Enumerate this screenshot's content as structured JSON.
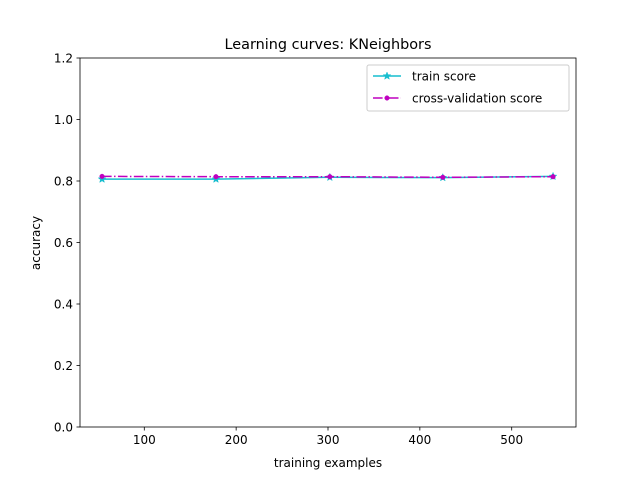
{
  "chart_data": {
    "type": "line",
    "title": "Learning curves: KNeighbors",
    "xlabel": "training examples",
    "ylabel": "accuracy",
    "xlim": [
      30,
      570
    ],
    "ylim": [
      0.0,
      1.2
    ],
    "xticks": [
      100,
      200,
      300,
      400,
      500
    ],
    "yticks": [
      0.0,
      0.2,
      0.4,
      0.6,
      0.8,
      1.0,
      1.2
    ],
    "xtick_labels": [
      "100",
      "200",
      "300",
      "400",
      "500"
    ],
    "ytick_labels": [
      "0.0",
      "0.2",
      "0.4",
      "0.6",
      "0.8",
      "1.0",
      "1.2"
    ],
    "grid": false,
    "legend_position": "top-right",
    "x": [
      54,
      178,
      302,
      425,
      545
    ],
    "series": [
      {
        "name": "train score",
        "values": [
          0.806,
          0.806,
          0.812,
          0.811,
          0.815
        ],
        "color": "#17becf",
        "line_style": "solid",
        "marker": "star"
      },
      {
        "name": "cross-validation score",
        "values": [
          0.815,
          0.814,
          0.814,
          0.812,
          0.814
        ],
        "color": "#bf00bf",
        "line_style": "dashdot",
        "marker": "dot"
      }
    ]
  }
}
